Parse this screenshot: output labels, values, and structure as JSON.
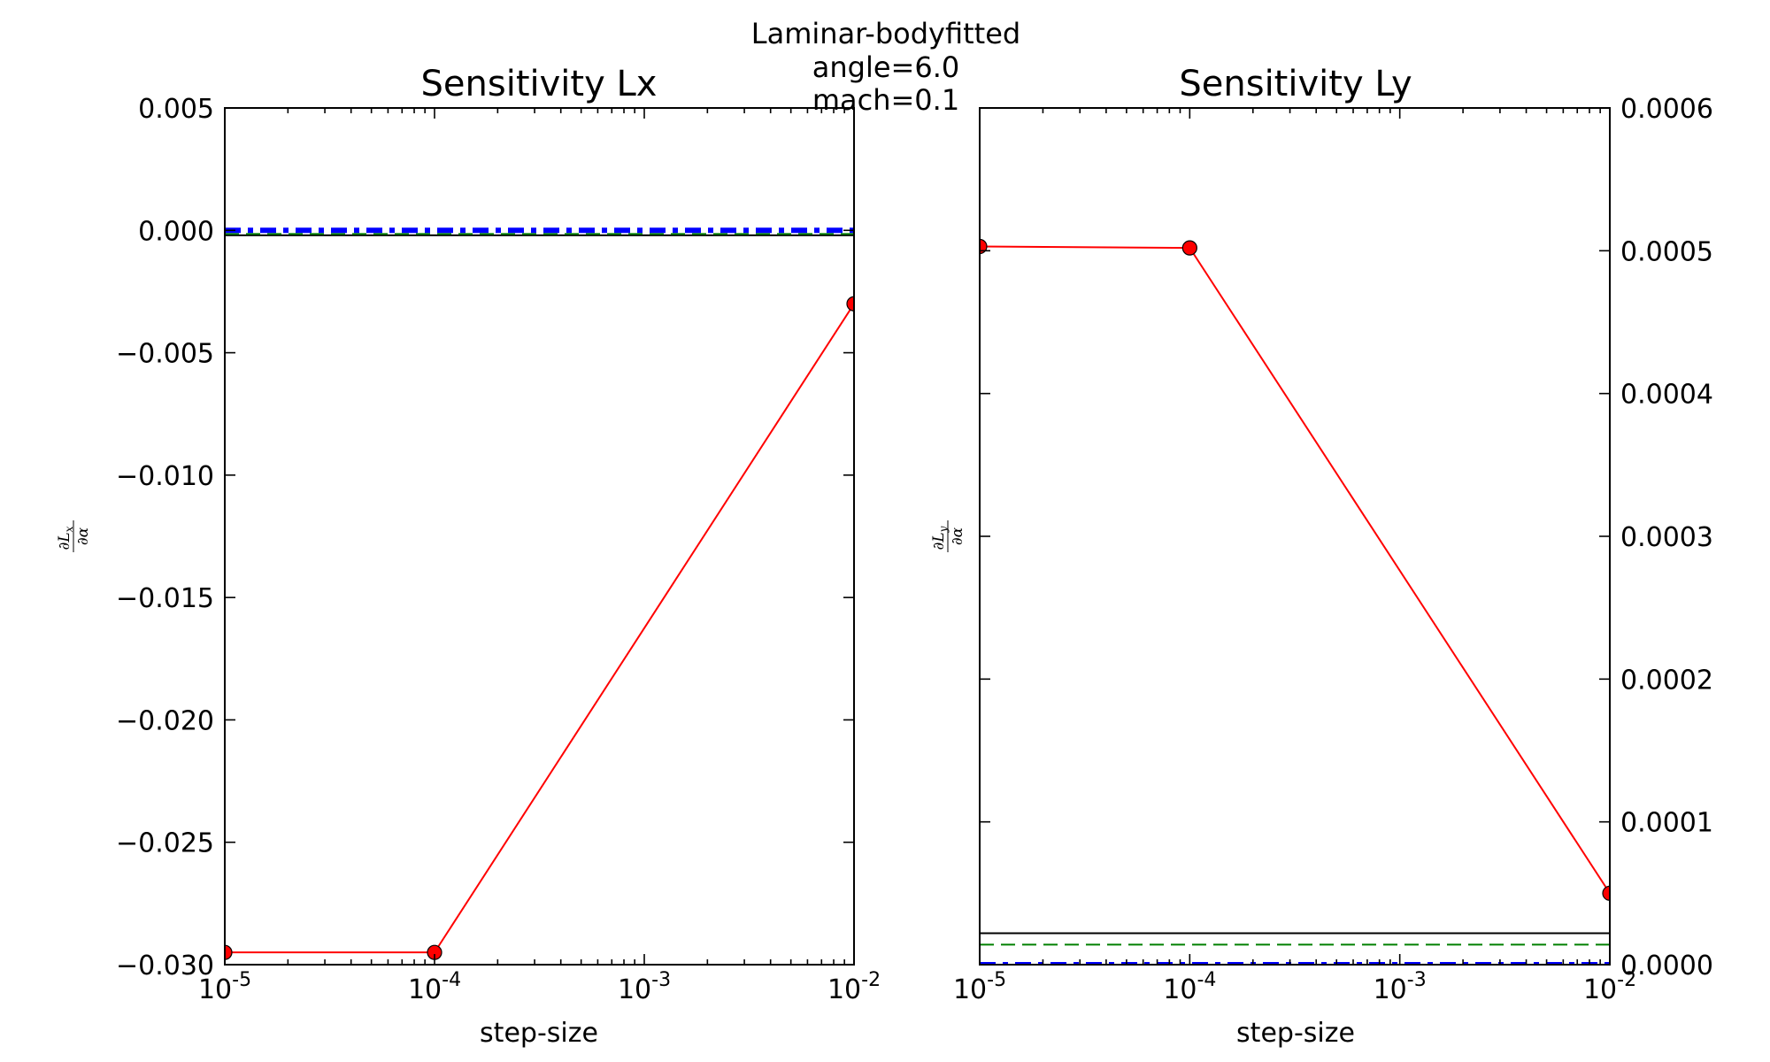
{
  "figure": {
    "suptitle_lines": [
      "Laminar-bodyfitted",
      "angle=6.0",
      "mach=0.1"
    ]
  },
  "chart_data": [
    {
      "type": "line",
      "title": "Sensitivity Lx",
      "xlabel": "step-size",
      "ylabel": "∂Lx / ∂α",
      "ylabel_num": "∂L",
      "ylabel_sub": "x",
      "ylabel_den": "∂α",
      "xscale": "log",
      "xlim": [
        1e-05,
        0.01
      ],
      "ylim": [
        -0.03,
        0.005
      ],
      "xtick_exponents": [
        -5,
        -4,
        -3,
        -2
      ],
      "yticks": [
        0.005,
        0.0,
        -0.005,
        -0.01,
        -0.015,
        -0.02,
        -0.025,
        -0.03
      ],
      "ytick_labels": [
        "0.005",
        "0.000",
        "−0.005",
        "−0.010",
        "−0.015",
        "−0.020",
        "−0.025",
        "−0.030"
      ],
      "yaxis_side": "left",
      "series": [
        {
          "style": "red-line-circles",
          "color": "#ff0000",
          "x": [
            1e-05,
            0.0001,
            0.01
          ],
          "y": [
            -0.0295,
            -0.0295,
            -0.003
          ]
        },
        {
          "style": "black-solid",
          "color": "#000000",
          "y_const": -0.0002
        },
        {
          "style": "green-dashed",
          "color": "#008000",
          "y_const": -0.00015
        },
        {
          "style": "blue-dashdot",
          "color": "#0000ff",
          "y_const": 0.0
        }
      ]
    },
    {
      "type": "line",
      "title": "Sensitivity Ly",
      "xlabel": "step-size",
      "ylabel": "∂Ly / ∂α",
      "ylabel_num": "∂L",
      "ylabel_sub": "y",
      "ylabel_den": "∂α",
      "xscale": "log",
      "xlim": [
        1e-05,
        0.01
      ],
      "ylim": [
        0.0,
        0.0006
      ],
      "xtick_exponents": [
        -5,
        -4,
        -3,
        -2
      ],
      "yticks": [
        0.0006,
        0.0005,
        0.0004,
        0.0003,
        0.0002,
        0.0001,
        0.0
      ],
      "ytick_labels": [
        "0.0006",
        "0.0005",
        "0.0004",
        "0.0003",
        "0.0002",
        "0.0001",
        "0.0000"
      ],
      "yaxis_side": "right",
      "series": [
        {
          "style": "red-line-circles",
          "color": "#ff0000",
          "x": [
            1e-05,
            0.0001,
            0.01
          ],
          "y": [
            0.000503,
            0.000502,
            5e-05
          ]
        },
        {
          "style": "black-solid",
          "color": "#000000",
          "y_const": 2.2e-05
        },
        {
          "style": "green-dashed",
          "color": "#008000",
          "y_const": 1.4e-05
        },
        {
          "style": "blue-dashdot",
          "color": "#0000ff",
          "y_const": 0.0
        }
      ]
    }
  ]
}
